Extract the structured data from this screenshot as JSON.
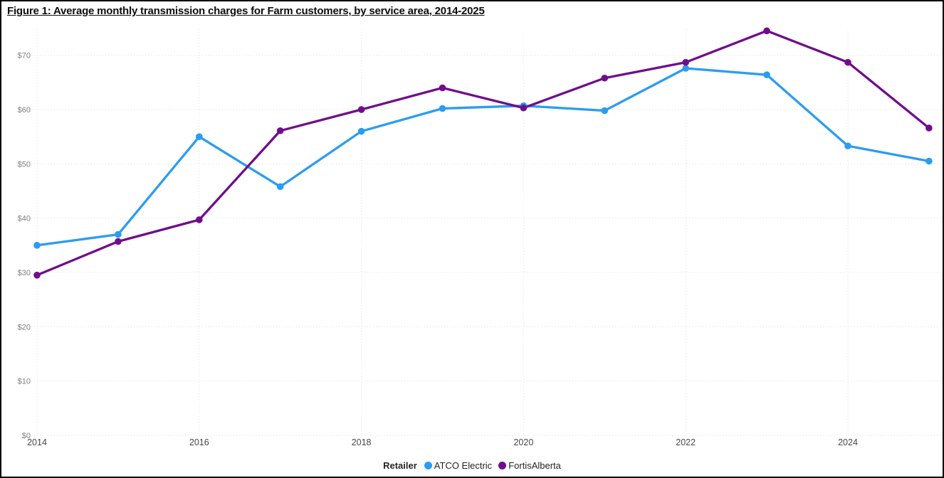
{
  "title": {
    "text": "Figure 1: Average monthly transmission charges for Farm customers, by service area, 2014-2025"
  },
  "chart_data": {
    "type": "line",
    "title": "Figure 1: Average monthly transmission charges for Farm customers, by service area, 2014-2025",
    "legend_title": "Retailer",
    "legend_position": "bottom-center",
    "grid_style": "dotted",
    "x": [
      2014,
      2015,
      2016,
      2017,
      2018,
      2019,
      2020,
      2021,
      2022,
      2023,
      2024,
      2025
    ],
    "x_axis_tick_years": [
      2014,
      2016,
      2018,
      2020,
      2022,
      2024
    ],
    "x_axis_tick_labels": [
      "2014",
      "2016",
      "2018",
      "2020",
      "2022",
      "2024"
    ],
    "y_axis_ticks": [
      {
        "value": 0,
        "label": "$0"
      },
      {
        "value": 10,
        "label": "$10"
      },
      {
        "value": 20,
        "label": "$20"
      },
      {
        "value": 30,
        "label": "$30"
      },
      {
        "value": 40,
        "label": "$40"
      },
      {
        "value": 50,
        "label": "$50"
      },
      {
        "value": 60,
        "label": "$60"
      },
      {
        "value": 70,
        "label": "$70"
      }
    ],
    "ylim": [
      0,
      75
    ],
    "series": [
      {
        "name": "ATCO Electric",
        "color": "#2B9CF2",
        "values": [
          35.0,
          37.0,
          55.0,
          45.8,
          56.0,
          60.2,
          60.7,
          59.8,
          67.6,
          66.4,
          53.3,
          50.5
        ]
      },
      {
        "name": "FortisAlberta",
        "color": "#700D8C",
        "values": [
          29.5,
          35.7,
          39.7,
          56.1,
          60.0,
          64.0,
          60.3,
          65.8,
          68.7,
          74.5,
          68.7,
          56.6
        ]
      }
    ],
    "colors": {
      "gridline": "#E1E1E1",
      "y_tick_text": "#807E7C",
      "x_tick_text": "#474747",
      "legend_text": "#252423",
      "title_text": "#0D0D0D",
      "frame_border": "#000000",
      "background": "#FFFFFF"
    }
  }
}
